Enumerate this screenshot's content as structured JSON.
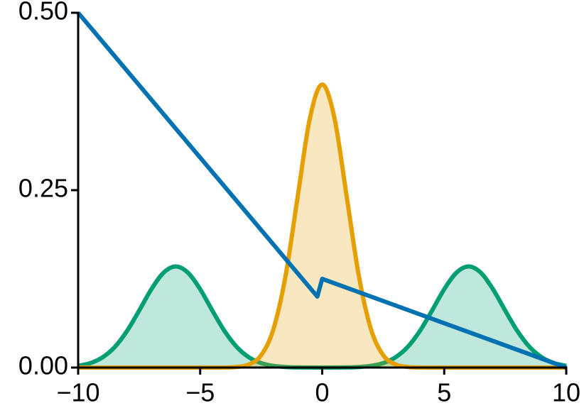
{
  "chart_data": {
    "type": "line",
    "xlim": [
      -10,
      10
    ],
    "ylim": [
      0,
      0.5
    ],
    "xticks": [
      {
        "value": -10,
        "label": "−10"
      },
      {
        "value": -5,
        "label": "−5"
      },
      0,
      5,
      10
    ],
    "yticks": [
      {
        "value": 0,
        "label": "0.00"
      },
      {
        "value": 0.25,
        "label": "0.25"
      },
      {
        "value": 0.5,
        "label": "0.50"
      }
    ],
    "series": [
      {
        "color": "#009e73",
        "fill": true,
        "x": [
          -10,
          -9.5,
          -9,
          -8.5,
          -8,
          -7.5,
          -7,
          -6.5,
          -6,
          -5.5,
          -5,
          -4.5,
          -4,
          -3.5,
          -3,
          -2.5,
          -2,
          -1.5,
          -1,
          -0.5,
          0,
          0.5,
          1,
          1.5,
          2,
          2.5,
          3,
          3.5,
          4,
          4.5,
          5,
          5.5,
          6,
          6.5,
          7,
          7.5,
          8,
          8.5,
          9,
          9.5,
          10
        ],
        "values": [
          0.0024,
          0.0063,
          0.0144,
          0.0289,
          0.0514,
          0.0803,
          0.1104,
          0.1337,
          0.1425,
          0.1337,
          0.1104,
          0.0803,
          0.0514,
          0.0289,
          0.0144,
          0.0063,
          0.0024,
          0.0008,
          0.0002,
          0.0001,
          0,
          0.0001,
          0.0002,
          0.0008,
          0.0024,
          0.0063,
          0.0144,
          0.0289,
          0.0514,
          0.0803,
          0.1104,
          0.1337,
          0.1425,
          0.1337,
          0.1104,
          0.0803,
          0.0514,
          0.0289,
          0.0144,
          0.0063,
          0.0024
        ]
      },
      {
        "color": "#e69f00",
        "fill": true,
        "x": [
          -10,
          -9.5,
          -9,
          -8.5,
          -8,
          -7.5,
          -7,
          -6.5,
          -6,
          -5.5,
          -5,
          -4.5,
          -4,
          -3.5,
          -3,
          -2.5,
          -2,
          -1.5,
          -1,
          -0.5,
          0,
          0.5,
          1,
          1.5,
          2,
          2.5,
          3,
          3.5,
          4,
          4.5,
          5,
          5.5,
          6,
          6.5,
          7,
          7.5,
          8,
          8.5,
          9,
          9.5,
          10
        ],
        "values": [
          0,
          0,
          0,
          0,
          0,
          0,
          0,
          0,
          0,
          0,
          0,
          0,
          0.0001,
          0.0009,
          0.0044,
          0.0175,
          0.054,
          0.1295,
          0.242,
          0.3521,
          0.3989,
          0.3521,
          0.242,
          0.1295,
          0.054,
          0.0175,
          0.0044,
          0.0009,
          0.0001,
          0,
          0,
          0,
          0,
          0,
          0,
          0,
          0,
          0,
          0,
          0,
          0
        ]
      },
      {
        "color": "#0072b2",
        "fill": false,
        "x": [
          -10,
          -0.2,
          0,
          10
        ],
        "values": [
          0.5,
          0.1,
          0.125,
          0
        ]
      }
    ]
  }
}
